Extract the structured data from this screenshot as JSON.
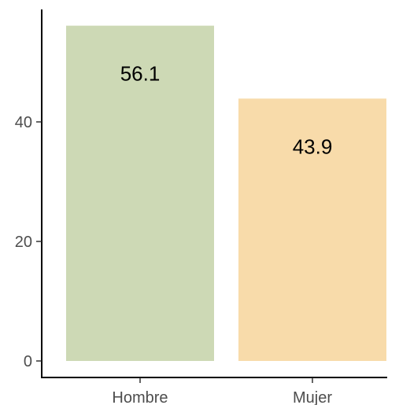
{
  "chart_data": {
    "type": "bar",
    "categories": [
      "Hombre",
      "Mujer"
    ],
    "values": [
      56.1,
      43.9
    ],
    "data_labels": [
      "56.1",
      "43.9"
    ],
    "colors": [
      "#cdd9b5",
      "#f8dbaa"
    ],
    "yticks": [
      0,
      20,
      40
    ],
    "ytick_labels": [
      "0",
      "20",
      "40"
    ],
    "ylim": [
      0,
      60
    ],
    "title": "",
    "xlabel": "",
    "ylabel": "",
    "grid": false,
    "legend": "none"
  }
}
